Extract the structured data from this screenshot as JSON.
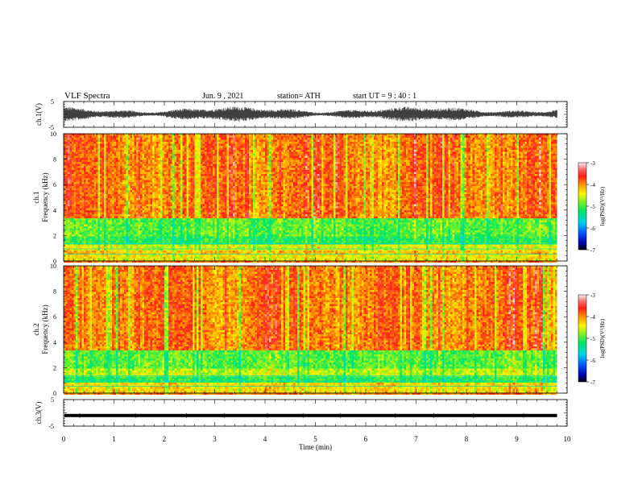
{
  "header": {
    "title": "VLF  Spectra",
    "date": "Jun. 9  , 2021",
    "station": "station= ATH",
    "start": "start  UT  =   9  : 40 : 1"
  },
  "chart_data": [
    {
      "type": "line",
      "panel": "ch1-waveform",
      "ylabel": "ch.1(V)",
      "ylim": [
        -5,
        5
      ],
      "yticks": [
        "5",
        "-5"
      ],
      "series": [
        {
          "values": "noisy waveform, amplitude about -2.5 to 2.5 V",
          "color": "#000000"
        }
      ]
    },
    {
      "type": "heatmap",
      "panel": "ch1-spectrogram",
      "ylabel": "ch.1",
      "ylabel2": "Frequency  (kHz)",
      "ylim": [
        0,
        10
      ],
      "yticks": [
        "0",
        "2",
        "4",
        "6",
        "8",
        "10"
      ],
      "bands": [
        {
          "from": 3.3,
          "to": 10.0,
          "level": -3.9
        },
        {
          "from": 1.9,
          "to": 3.3,
          "level": -4.9
        },
        {
          "from": 1.3,
          "to": 1.9,
          "level": -5.1
        },
        {
          "from": 0.9,
          "to": 1.3,
          "level": -4.5
        },
        {
          "from": 0.5,
          "to": 0.9,
          "level": -4.2
        },
        {
          "from": 0.0,
          "to": 0.5,
          "level": -4.4
        }
      ],
      "colorbar": {
        "label": "log(PSD)(V²/Hz)",
        "range": [
          -7,
          -3
        ],
        "ticks": [
          "-3",
          "-4",
          "-5",
          "-6",
          "-7"
        ]
      }
    },
    {
      "type": "heatmap",
      "panel": "ch2-spectrogram",
      "ylabel": "ch.2",
      "ylabel2": "Frequency  (kHz)",
      "ylim": [
        0,
        10
      ],
      "yticks": [
        "0",
        "2",
        "4",
        "6",
        "8",
        "10"
      ],
      "bands": [
        {
          "from": 3.3,
          "to": 10.0,
          "level": -3.9
        },
        {
          "from": 1.9,
          "to": 3.3,
          "level": -4.9
        },
        {
          "from": 1.3,
          "to": 1.9,
          "level": -4.6
        },
        {
          "from": 0.9,
          "to": 1.3,
          "level": -5.1
        },
        {
          "from": 0.0,
          "to": 0.9,
          "level": -4.3
        }
      ],
      "colorbar": {
        "label": "log(PSD)(V²/Hz)",
        "range": [
          -7,
          -3
        ],
        "ticks": [
          "-3",
          "-4",
          "-5",
          "-6",
          "-7"
        ]
      }
    },
    {
      "type": "line",
      "panel": "ch3-waveform",
      "ylabel": "ch.3(V)",
      "ylim": [
        -5,
        5
      ],
      "yticks": [
        "5",
        "-5"
      ],
      "series": [
        {
          "values": "flat trace near -1 V",
          "color": "#000000"
        }
      ]
    }
  ],
  "xaxis": {
    "label": "Time  (min)",
    "xlim": [
      0,
      10
    ],
    "ticks": [
      "0",
      "1",
      "2",
      "3",
      "4",
      "5",
      "6",
      "7",
      "8",
      "9",
      "10"
    ],
    "data_end": 9.8
  }
}
